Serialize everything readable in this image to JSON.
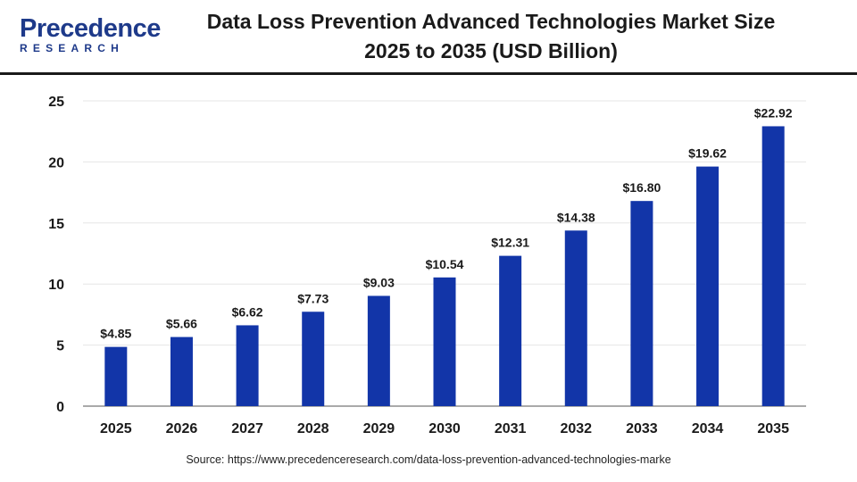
{
  "logo": {
    "word": "Precedence",
    "sub": "RESEARCH"
  },
  "title_line1": "Data Loss Prevention Advanced Technologies Market Size",
  "title_line2": "2025 to 2035 (USD Billion)",
  "source": "Source: https://www.precedenceresearch.com/data-loss-prevention-advanced-technologies-marke",
  "colors": {
    "bar": "#1235a8",
    "grid": "#e6e6e6",
    "axis": "#555555",
    "text": "#1a1a1a"
  },
  "chart_data": {
    "type": "bar",
    "title": "Data Loss Prevention Advanced Technologies Market Size 2025 to 2035 (USD Billion)",
    "xlabel": "",
    "ylabel": "",
    "categories": [
      "2025",
      "2026",
      "2027",
      "2028",
      "2029",
      "2030",
      "2031",
      "2032",
      "2033",
      "2034",
      "2035"
    ],
    "values": [
      4.85,
      5.66,
      6.62,
      7.73,
      9.03,
      10.54,
      12.31,
      14.38,
      16.8,
      19.62,
      22.92
    ],
    "data_labels": [
      "$4.85",
      "$5.66",
      "$6.62",
      "$7.73",
      "$9.03",
      "$10.54",
      "$12.31",
      "$14.38",
      "$16.80",
      "$19.62",
      "$22.92"
    ],
    "ylim": [
      0,
      25
    ],
    "yticks": [
      0,
      5,
      10,
      15,
      20,
      25
    ],
    "grid": true,
    "legend": "none"
  }
}
